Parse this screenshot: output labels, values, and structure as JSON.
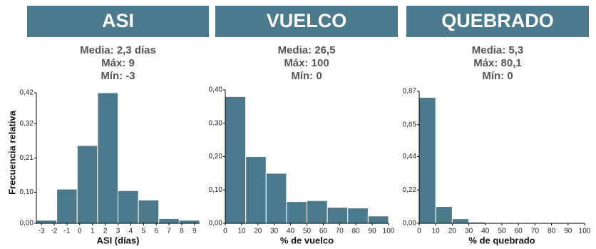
{
  "chart_data": [
    {
      "type": "histogram",
      "title": "ASI",
      "annotations": [
        "Media: 2,3 días",
        "Máx: 9",
        "Mín: -3"
      ],
      "ylabel": "Frecuencia relativa",
      "xlabel": "ASI (días)",
      "color": "#4b7a8c",
      "bins": [
        -3.4,
        -1.8,
        -0.2,
        1.4,
        3.0,
        4.6,
        6.2,
        7.8,
        9.4
      ],
      "values": [
        0.01,
        0.11,
        0.25,
        0.42,
        0.105,
        0.075,
        0.015,
        0.01
      ],
      "xlim": [
        -3.4,
        9.4
      ],
      "xticks": [
        -3,
        -2,
        -1,
        0,
        1,
        2,
        3,
        4,
        5,
        6,
        7,
        8,
        9
      ],
      "ylim": [
        0,
        0.42
      ],
      "yticks": [
        {
          "value": 0,
          "label": "0,00"
        },
        {
          "value": 0.1,
          "label": "0,10"
        },
        {
          "value": 0.21,
          "label": "0,21"
        },
        {
          "value": 0.32,
          "label": "0,32"
        },
        {
          "value": 0.42,
          "label": "0,42"
        }
      ]
    },
    {
      "type": "histogram",
      "title": "VUELCO",
      "annotations": [
        "Media: 26,5",
        "Máx: 100",
        "Mín: 0"
      ],
      "xlabel": "% de vuelco",
      "color": "#4b7a8c",
      "bins": [
        0,
        12.5,
        25,
        37.5,
        50,
        62.5,
        75,
        87.5,
        100
      ],
      "values": [
        0.38,
        0.2,
        0.15,
        0.065,
        0.068,
        0.048,
        0.046,
        0.022
      ],
      "xlim": [
        0,
        100
      ],
      "xticks": [
        0,
        10,
        20,
        30,
        40,
        50,
        60,
        70,
        80,
        90,
        100
      ],
      "ylim": [
        0,
        0.4
      ],
      "yticks": [
        {
          "value": 0,
          "label": "0,00"
        },
        {
          "value": 0.1,
          "label": "0,10"
        },
        {
          "value": 0.2,
          "label": "0,20"
        },
        {
          "value": 0.3,
          "label": "0,30"
        },
        {
          "value": 0.4,
          "label": "0,40"
        }
      ]
    },
    {
      "type": "histogram",
      "title": "QUEBRADO",
      "annotations": [
        "Media: 5,3",
        "Máx: 80,1",
        "Mín: 0"
      ],
      "xlabel": "% de quebrado",
      "color": "#4b7a8c",
      "bins": [
        0,
        10,
        20,
        30,
        40,
        50,
        60,
        70,
        80
      ],
      "values": [
        0.83,
        0.11,
        0.03,
        0.008,
        0.005,
        0.002,
        0.001,
        0.003
      ],
      "xlim": [
        0,
        100
      ],
      "xticks": [
        0,
        10,
        20,
        30,
        40,
        50,
        60,
        70,
        80,
        90,
        100
      ],
      "ylim": [
        0,
        0.87
      ],
      "yticks": [
        {
          "value": 0,
          "label": "0,00"
        },
        {
          "value": 0.22,
          "label": "0,22"
        },
        {
          "value": 0.44,
          "label": "0,44"
        },
        {
          "value": 0.65,
          "label": "0,65"
        },
        {
          "value": 0.87,
          "label": "0,87"
        }
      ]
    }
  ]
}
